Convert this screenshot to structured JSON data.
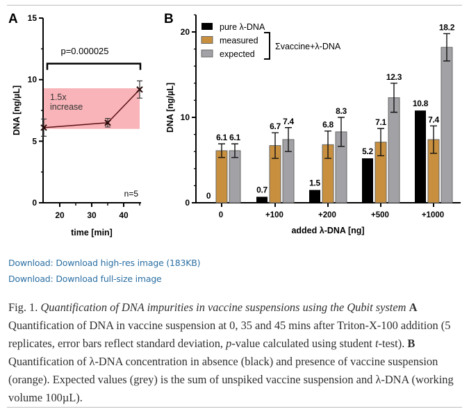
{
  "links": {
    "highres": "Download: Download high-res image (183KB)",
    "fullsize": "Download: Download full-size image"
  },
  "caption": {
    "fig_label": "Fig. 1.",
    "title": "Quantification of DNA impurities in vaccine suspensions using the Qubit system",
    "a_label": "A",
    "a_text_1": "Quantification of DNA in vaccine suspension at 0, 35 and 45 mins after Triton-X-100 addition (5 replicates, error bars reflect standard deviation, ",
    "p_italic": "p",
    "a_text_2": "-value calculated using student ",
    "t_italic": "t",
    "a_text_3": "-test). ",
    "b_label": "B",
    "b_text": "Quantification of λ-DNA concentration in absence (black) and presence of vaccine suspension (orange). Expected values (grey) is the sum of unspiked vaccine suspension and λ-DNA (working volume 100µL)."
  },
  "chart_data": [
    {
      "panel": "A",
      "type": "line",
      "xlabel": "time [min]",
      "ylabel": "DNA [ng/µL]",
      "xlim": [
        15,
        47
      ],
      "ylim": [
        0,
        15
      ],
      "xticks": [
        "20",
        "30",
        "40"
      ],
      "yticks": [
        "0",
        "5",
        "10",
        "15"
      ],
      "x": [
        15,
        35,
        45
      ],
      "y": [
        6.1,
        6.5,
        9.2
      ],
      "error": [
        0.7,
        0.35,
        0.7
      ],
      "band": {
        "y_range": [
          6.0,
          9.3
        ],
        "label_1": "1.5x",
        "label_2": "increase",
        "color": "#f7a7ab"
      },
      "significance": {
        "text": "p=0.000025",
        "y": 11.3
      },
      "annotation": "n=5",
      "line_color": "#5a0f12"
    },
    {
      "panel": "B",
      "type": "bar",
      "xlabel": "added λ-DNA [ng]",
      "ylabel": "DNA [ng/µL]",
      "ylim": [
        0,
        22
      ],
      "yticks": [
        "0",
        "10",
        "20"
      ],
      "categories": [
        "0",
        "+100",
        "+200",
        "+500",
        "+1000"
      ],
      "series": [
        {
          "name": "pure λ-DNA",
          "color": "#000000",
          "values": [
            0,
            0.7,
            1.5,
            5.2,
            10.8
          ],
          "labels": [
            "0",
            "0.7",
            "1.5",
            "5.2",
            "10.8"
          ],
          "error": null
        },
        {
          "name": "measured",
          "color": "#c8903e",
          "values": [
            6.1,
            6.7,
            6.8,
            7.1,
            7.4
          ],
          "labels": [
            "6.1",
            "6.7",
            "6.8",
            "7.1",
            "7.4"
          ],
          "error": [
            0.8,
            1.5,
            1.6,
            1.6,
            1.6
          ]
        },
        {
          "name": "expected",
          "color": "#a2a2a6",
          "values": [
            6.1,
            7.4,
            8.3,
            12.3,
            18.2
          ],
          "labels": [
            "6.1",
            "7.4",
            "8.3",
            "12.3",
            "18.2"
          ],
          "error": [
            0.8,
            1.4,
            1.7,
            1.7,
            1.6
          ]
        }
      ],
      "legend_group_label": "Σvaccine+λ-DNA",
      "legend": "top-left"
    }
  ]
}
